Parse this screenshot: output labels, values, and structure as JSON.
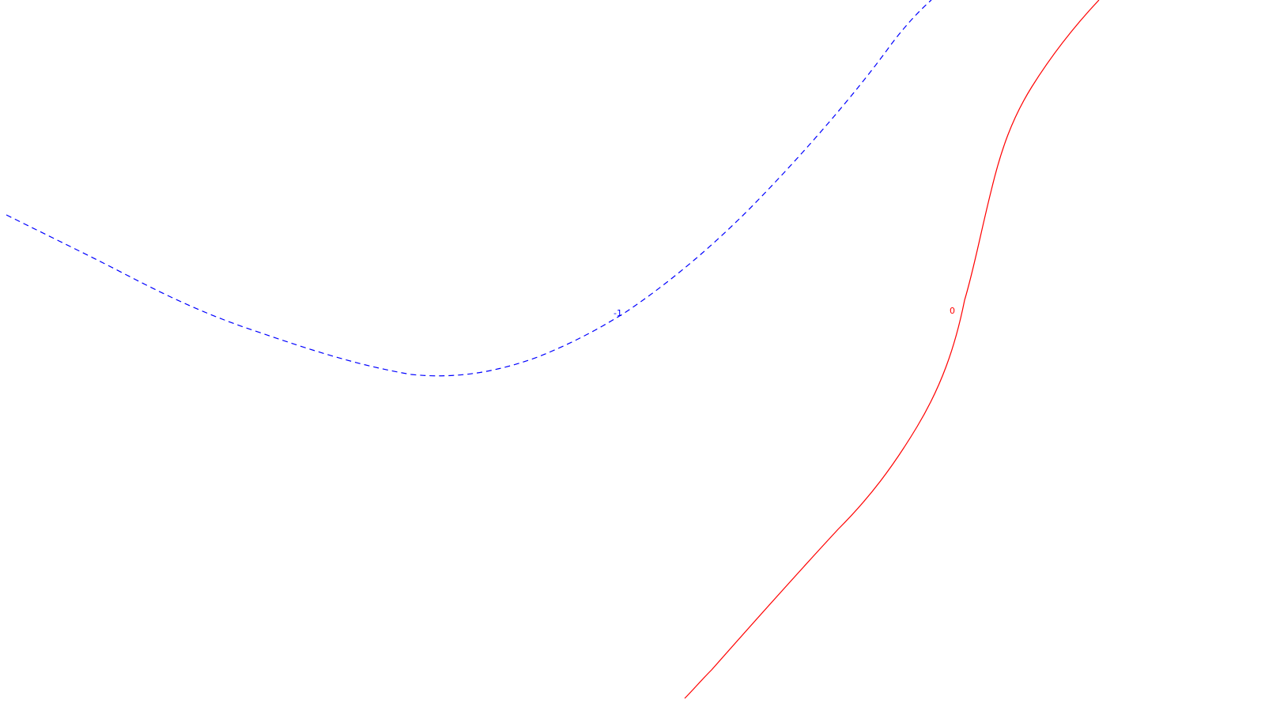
{
  "contours": [
    {
      "id": "dashed",
      "label": "-1",
      "color": "#0000ff",
      "style": "dashed"
    },
    {
      "id": "solid",
      "label": "0",
      "color": "#ff0000",
      "style": "solid"
    }
  ]
}
